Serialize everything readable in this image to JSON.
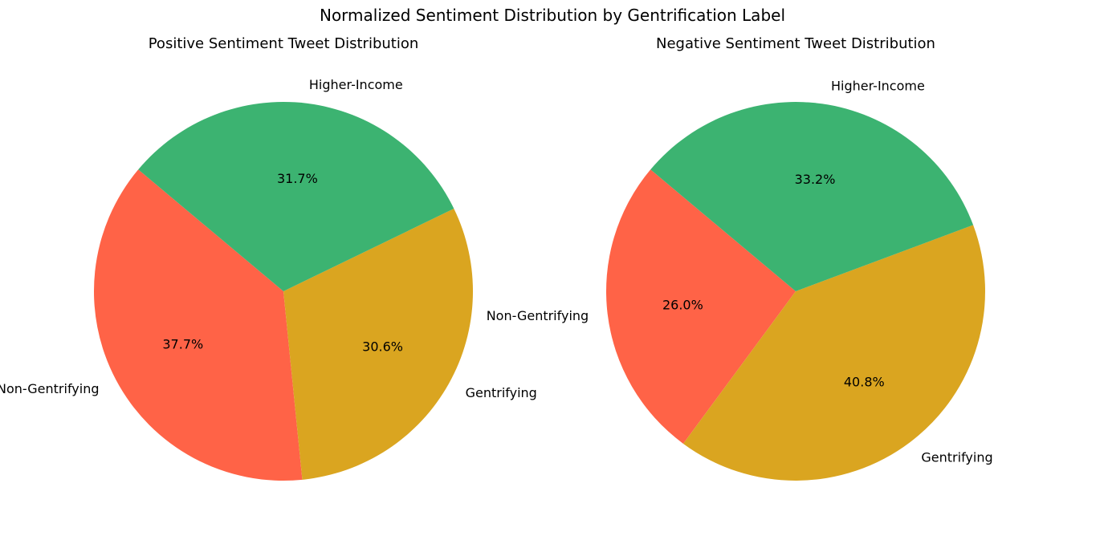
{
  "figure": {
    "title": "Normalized Sentiment Distribution by Gentrification Label"
  },
  "chart_data": [
    {
      "type": "pie",
      "title": "Positive Sentiment Tweet Distribution",
      "autopct_format": "1 decimal",
      "slices": [
        {
          "label": "Non-Gentrifying",
          "value": 37.7,
          "pct_text": "37.7%",
          "color": "#FF6347"
        },
        {
          "label": "Gentrifying",
          "value": 30.6,
          "pct_text": "30.6%",
          "color": "#DAA520"
        },
        {
          "label": "Higher-Income",
          "value": 31.7,
          "pct_text": "31.7%",
          "color": "#3CB371"
        }
      ]
    },
    {
      "type": "pie",
      "title": "Negative Sentiment Tweet Distribution",
      "autopct_format": "1 decimal",
      "slices": [
        {
          "label": "Non-Gentrifying",
          "value": 26.0,
          "pct_text": "26.0%",
          "color": "#FF6347"
        },
        {
          "label": "Gentrifying",
          "value": 40.8,
          "pct_text": "40.8%",
          "color": "#DAA520"
        },
        {
          "label": "Higher-Income",
          "value": 33.2,
          "pct_text": "33.2%",
          "color": "#3CB371"
        }
      ]
    }
  ]
}
